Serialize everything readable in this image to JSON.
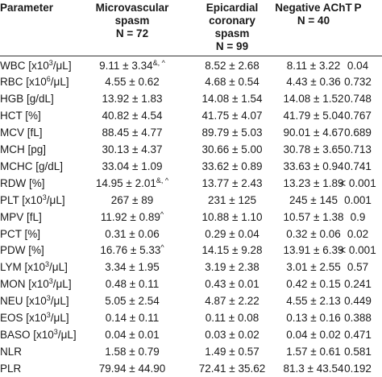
{
  "headers": {
    "parameter": "Parameter",
    "micro_line1": "Microvascular",
    "micro_line2": "spasm",
    "micro_line3": "N = 72",
    "epi_line1": "Epicardial",
    "epi_line2": "coronary",
    "epi_line3": "spasm",
    "epi_line4": "N = 99",
    "neg_line1": "Negative AChT",
    "neg_line2": "N = 40",
    "p": "P"
  },
  "rows": [
    {
      "param": "WBC [x10",
      "psup": "3",
      "pend": "/μL]",
      "micro": "9.11 ± 3.34",
      "msup": "&, ^",
      "epi": "8.52 ± 2.68",
      "neg": "8.11 ± 3.22",
      "p": "0.04"
    },
    {
      "param": "RBC [x10",
      "psup": "6",
      "pend": "/μL]",
      "micro": "4.55 ± 0.62",
      "msup": "",
      "epi": "4.68 ± 0.54",
      "neg": "4.43 ± 0.36",
      "p": "0.732"
    },
    {
      "param": "HGB [g/dL]",
      "psup": "",
      "pend": "",
      "micro": "13.92 ± 1.83",
      "msup": "",
      "epi": "14.08 ± 1.54",
      "neg": "14.08 ± 1.52",
      "p": "0.748"
    },
    {
      "param": "HCT [%]",
      "psup": "",
      "pend": "",
      "micro": "40.82 ± 4.54",
      "msup": "",
      "epi": "41.75 ± 4.07",
      "neg": "41.79 ± 5.04",
      "p": "0.767"
    },
    {
      "param": "MCV [fL]",
      "psup": "",
      "pend": "",
      "micro": "88.45 ± 4.77",
      "msup": "",
      "epi": "89.79 ± 5.03",
      "neg": "90.01 ± 4.67",
      "p": "0.689"
    },
    {
      "param": "MCH [pg]",
      "psup": "",
      "pend": "",
      "micro": "30.13 ± 4.37",
      "msup": "",
      "epi": "30.66 ± 5.00",
      "neg": "30.78 ± 3.65",
      "p": "0.713"
    },
    {
      "param": "MCHC [g/dL]",
      "psup": "",
      "pend": "",
      "micro": "33.04 ± 1.09",
      "msup": "",
      "epi": "33.62 ± 0.89",
      "neg": "33.63 ± 0.94",
      "p": "0.741"
    },
    {
      "param": "RDW [%]",
      "psup": "",
      "pend": "",
      "micro": "14.95 ± 2.01",
      "msup": "&, ^",
      "epi": "13.77 ± 2.43",
      "neg": "13.23 ± 1.89",
      "p": "< 0.001"
    },
    {
      "param": "PLT [x10",
      "psup": "3",
      "pend": "/μL]",
      "micro": "267 ± 89",
      "msup": "",
      "epi": "231 ± 125",
      "neg": "245 ± 145",
      "p": "0.001"
    },
    {
      "param": "MPV [fL]",
      "psup": "",
      "pend": "",
      "micro": "11.92 ± 0.89",
      "msup": "^",
      "epi": "10.88 ± 1.10",
      "neg": "10.57 ± 1.38",
      "p": "0.9"
    },
    {
      "param": "PCT [%]",
      "psup": "",
      "pend": "",
      "micro": "0.31 ± 0.06",
      "msup": "",
      "epi": "0.29 ± 0.04",
      "neg": "0.32 ± 0.06",
      "p": "0.02"
    },
    {
      "param": "PDW [%]",
      "psup": "",
      "pend": "",
      "micro": "16.76 ± 5.33",
      "msup": "^",
      "epi": "14.15 ± 9.28",
      "neg": "13.91 ± 6.39",
      "p": "< 0.001"
    },
    {
      "param": "LYM [x10",
      "psup": "3",
      "pend": "/μL]",
      "micro": "3.34 ± 1.95",
      "msup": "",
      "epi": "3.19 ± 2.38",
      "neg": "3.01 ± 2.55",
      "p": "0.57"
    },
    {
      "param": "MON [x10",
      "psup": "3",
      "pend": "/μL]",
      "micro": "0.48 ± 0.11",
      "msup": "",
      "epi": "0.43 ± 0.01",
      "neg": "0.42 ± 0.15",
      "p": "0.241"
    },
    {
      "param": "NEU [x10",
      "psup": "3",
      "pend": "/μL]",
      "micro": "5.05 ± 2.54",
      "msup": "",
      "epi": "4.87 ± 2.22",
      "neg": "4.55 ± 2.13",
      "p": "0.449"
    },
    {
      "param": "EOS [x10",
      "psup": "3",
      "pend": "/μL]",
      "micro": "0.14 ± 0.11",
      "msup": "",
      "epi": "0.11 ± 0.08",
      "neg": "0.13 ± 0.16",
      "p": "0.388"
    },
    {
      "param": "BASO [x10",
      "psup": "3",
      "pend": "/μL]",
      "micro": "0.04 ± 0.01",
      "msup": "",
      "epi": "0.03 ± 0.02",
      "neg": "0.04 ± 0.02",
      "p": "0.471"
    },
    {
      "param": "NLR",
      "psup": "",
      "pend": "",
      "micro": "1.58 ± 0.79",
      "msup": "",
      "epi": "1.49 ± 0.57",
      "neg": "1.57 ± 0.61",
      "p": "0.581"
    },
    {
      "param": "PLR",
      "psup": "",
      "pend": "",
      "micro": "79.94 ± 44.90",
      "msup": "",
      "epi": "72.41 ± 35.62",
      "neg": "81.3 ± 43.54",
      "p": "0.192"
    }
  ]
}
